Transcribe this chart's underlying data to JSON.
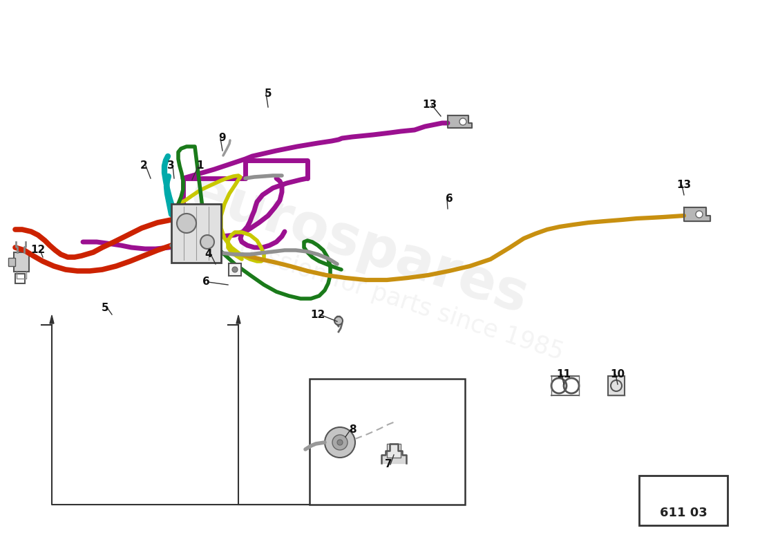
{
  "background_color": "#ffffff",
  "part_number": "611 03",
  "colors": {
    "purple": "#9B1090",
    "red": "#CC2200",
    "teal": "#00AAAA",
    "yellow_green": "#C8C800",
    "green": "#1A7A1A",
    "gold": "#C89010",
    "gray": "#909090",
    "dark": "#333333",
    "light_gray": "#c8c8c8",
    "box_gray": "#e0e0e0"
  }
}
